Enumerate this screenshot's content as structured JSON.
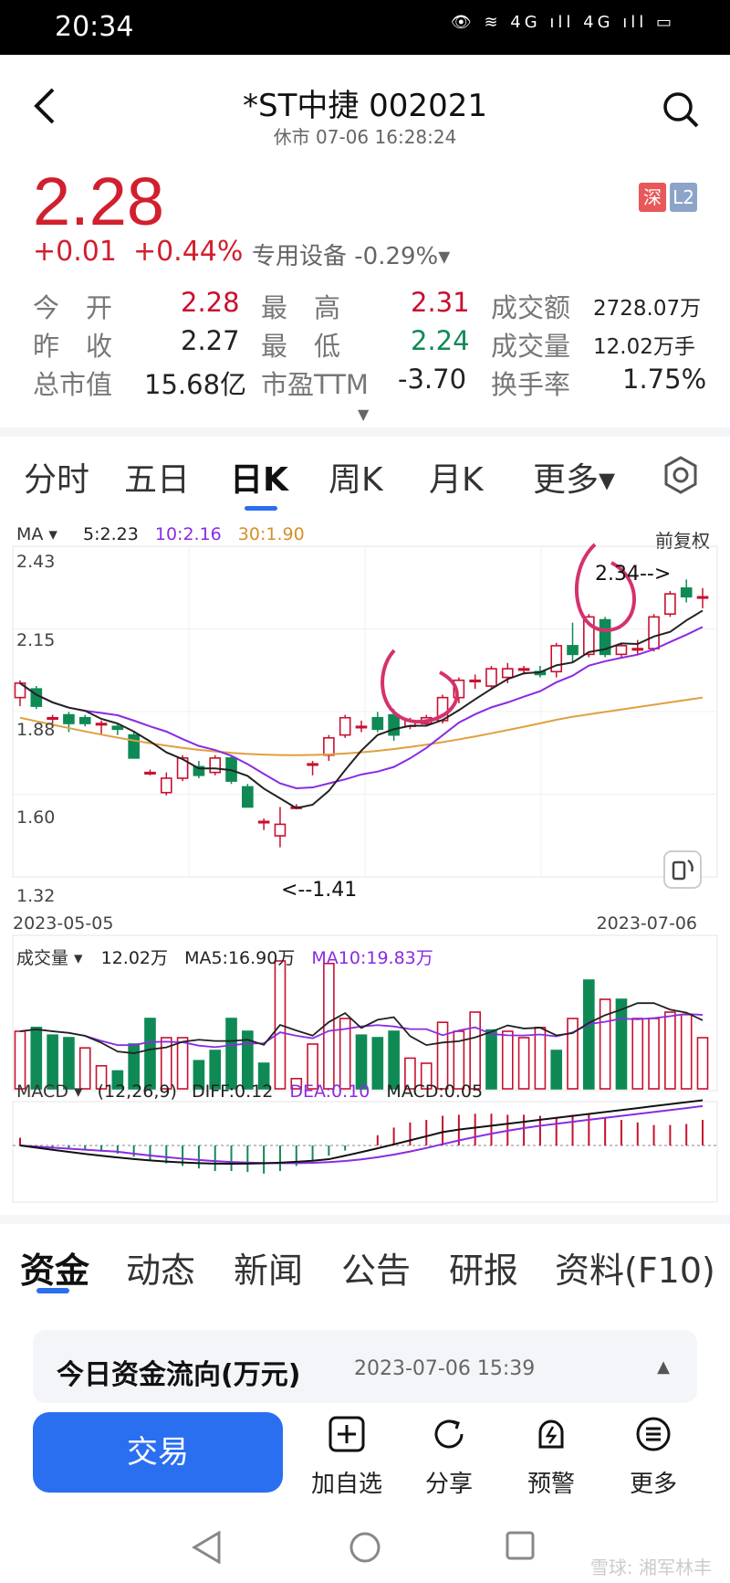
{
  "status_bar": {
    "time": "20:34",
    "icons": "👁 ≋ 4G ıll 4G ıll ▭"
  },
  "header": {
    "title": "*ST中捷 002021",
    "subtitle": "休市 07-06 16:28:24"
  },
  "quote": {
    "price": "2.28",
    "change": "+0.01",
    "change_pct": "+0.44%",
    "sector": "专用设备 -0.29%▾",
    "badge_exchange": "深",
    "badge_level": "L2",
    "rows": [
      {
        "l1": "今　开",
        "v1": "2.28",
        "l2": "最　高",
        "v2": "2.31",
        "l3": "成交额",
        "v3": "2728.07万"
      },
      {
        "l1": "昨　收",
        "v1": "2.27",
        "l2": "最　低",
        "v2": "2.24",
        "l3": "成交量",
        "v3": "12.02万手"
      },
      {
        "l1": "总市值",
        "v1": "15.68亿",
        "l2": "市盈TTM",
        "v2": "-3.70",
        "l3": "换手率",
        "v3": "1.75%"
      }
    ],
    "expand_icon": "▼"
  },
  "chart_tabs": [
    "分时",
    "五日",
    "日K",
    "周K",
    "月K",
    "更多▾"
  ],
  "chart_tab_active": 2,
  "chart_legend": {
    "ma_label": "MA ▾",
    "ma5": "5:2.23",
    "ma10": "10:2.16",
    "ma30": "30:1.90",
    "adjust": "前复权",
    "y_top": "2.43",
    "y_2": "2.15",
    "y_3": "1.88",
    "y_4": "1.60",
    "y_bottom": "1.32",
    "x_start": "2023-05-05",
    "x_end": "2023-07-06",
    "max_annot": "2.34-->",
    "min_annot": "<--1.41",
    "vol_label": "成交量 ▾",
    "vol_val": "12.02万",
    "vol_ma5": "MA5:16.90万",
    "vol_ma10": "MA10:19.83万",
    "macd_label": "MACD ▾",
    "macd_params": "(12,26,9)",
    "diff": "DIFF:0.12",
    "dea": "DEA:0.10",
    "macd": "MACD:0.05"
  },
  "chart_data": {
    "type": "candlestick",
    "x_range": [
      "2023-05-05",
      "2023-07-06"
    ],
    "ylim": [
      1.32,
      2.43
    ],
    "min_low": 1.41,
    "max_high": 2.34,
    "candles": [
      {
        "o": 1.93,
        "c": 1.98,
        "h": 1.99,
        "l": 1.9
      },
      {
        "o": 1.96,
        "c": 1.9,
        "h": 1.97,
        "l": 1.89
      },
      {
        "o": 1.86,
        "c": 1.86,
        "h": 1.87,
        "l": 1.84
      },
      {
        "o": 1.87,
        "c": 1.84,
        "h": 1.88,
        "l": 1.81
      },
      {
        "o": 1.86,
        "c": 1.84,
        "h": 1.87,
        "l": 1.83
      },
      {
        "o": 1.84,
        "c": 1.84,
        "h": 1.85,
        "l": 1.8
      },
      {
        "o": 1.83,
        "c": 1.82,
        "h": 1.84,
        "l": 1.8
      },
      {
        "o": 1.8,
        "c": 1.72,
        "h": 1.81,
        "l": 1.72
      },
      {
        "o": 1.67,
        "c": 1.67,
        "h": 1.68,
        "l": 1.66
      },
      {
        "o": 1.6,
        "c": 1.65,
        "h": 1.67,
        "l": 1.59
      },
      {
        "o": 1.65,
        "c": 1.72,
        "h": 1.73,
        "l": 1.64
      },
      {
        "o": 1.69,
        "c": 1.66,
        "h": 1.71,
        "l": 1.65
      },
      {
        "o": 1.67,
        "c": 1.72,
        "h": 1.73,
        "l": 1.66
      },
      {
        "o": 1.72,
        "c": 1.64,
        "h": 1.73,
        "l": 1.63
      },
      {
        "o": 1.62,
        "c": 1.55,
        "h": 1.63,
        "l": 1.55
      },
      {
        "o": 1.5,
        "c": 1.5,
        "h": 1.51,
        "l": 1.47
      },
      {
        "o": 1.45,
        "c": 1.49,
        "h": 1.55,
        "l": 1.41
      },
      {
        "o": 1.55,
        "c": 1.55,
        "h": 1.56,
        "l": 1.55
      },
      {
        "o": 1.7,
        "c": 1.7,
        "h": 1.71,
        "l": 1.66
      },
      {
        "o": 1.73,
        "c": 1.79,
        "h": 1.8,
        "l": 1.71
      },
      {
        "o": 1.8,
        "c": 1.86,
        "h": 1.87,
        "l": 1.79
      },
      {
        "o": 1.83,
        "c": 1.83,
        "h": 1.85,
        "l": 1.81
      },
      {
        "o": 1.86,
        "c": 1.82,
        "h": 1.88,
        "l": 1.81
      },
      {
        "o": 1.87,
        "c": 1.8,
        "h": 1.89,
        "l": 1.78
      },
      {
        "o": 1.83,
        "c": 1.85,
        "h": 1.86,
        "l": 1.82
      },
      {
        "o": 1.84,
        "c": 1.86,
        "h": 1.87,
        "l": 1.83
      },
      {
        "o": 1.85,
        "c": 1.93,
        "h": 1.94,
        "l": 1.84
      },
      {
        "o": 1.93,
        "c": 1.99,
        "h": 2.0,
        "l": 1.91
      },
      {
        "o": 1.99,
        "c": 1.99,
        "h": 2.01,
        "l": 1.96
      },
      {
        "o": 1.97,
        "c": 2.03,
        "h": 2.04,
        "l": 1.96
      },
      {
        "o": 2.0,
        "c": 2.03,
        "h": 2.05,
        "l": 1.98
      },
      {
        "o": 2.03,
        "c": 2.03,
        "h": 2.04,
        "l": 2.01
      },
      {
        "o": 2.02,
        "c": 2.01,
        "h": 2.04,
        "l": 2.0
      },
      {
        "o": 2.02,
        "c": 2.11,
        "h": 2.12,
        "l": 2.0
      },
      {
        "o": 2.11,
        "c": 2.08,
        "h": 2.19,
        "l": 2.05
      },
      {
        "o": 2.08,
        "c": 2.21,
        "h": 2.22,
        "l": 2.07
      },
      {
        "o": 2.2,
        "c": 2.08,
        "h": 2.21,
        "l": 2.07
      },
      {
        "o": 2.08,
        "c": 2.11,
        "h": 2.12,
        "l": 2.07
      },
      {
        "o": 2.1,
        "c": 2.1,
        "h": 2.13,
        "l": 2.08
      },
      {
        "o": 2.1,
        "c": 2.21,
        "h": 2.22,
        "l": 2.09
      },
      {
        "o": 2.22,
        "c": 2.29,
        "h": 2.3,
        "l": 2.21
      },
      {
        "o": 2.31,
        "c": 2.28,
        "h": 2.34,
        "l": 2.26
      },
      {
        "o": 2.28,
        "c": 2.28,
        "h": 2.31,
        "l": 2.24
      }
    ],
    "volumes": [
      {
        "v": 0.45,
        "up": true
      },
      {
        "v": 0.48,
        "up": false
      },
      {
        "v": 0.42,
        "up": false
      },
      {
        "v": 0.4,
        "up": false
      },
      {
        "v": 0.32,
        "up": true
      },
      {
        "v": 0.18,
        "up": true
      },
      {
        "v": 0.14,
        "up": false
      },
      {
        "v": 0.35,
        "up": false
      },
      {
        "v": 0.55,
        "up": false
      },
      {
        "v": 0.4,
        "up": true
      },
      {
        "v": 0.4,
        "up": true
      },
      {
        "v": 0.22,
        "up": false
      },
      {
        "v": 0.3,
        "up": false
      },
      {
        "v": 0.55,
        "up": false
      },
      {
        "v": 0.45,
        "up": false
      },
      {
        "v": 0.2,
        "up": false
      },
      {
        "v": 1.0,
        "up": true
      },
      {
        "v": 0.08,
        "up": true
      },
      {
        "v": 0.35,
        "up": true
      },
      {
        "v": 0.98,
        "up": true
      },
      {
        "v": 0.55,
        "up": true
      },
      {
        "v": 0.42,
        "up": false
      },
      {
        "v": 0.4,
        "up": false
      },
      {
        "v": 0.45,
        "up": false
      },
      {
        "v": 0.24,
        "up": true
      },
      {
        "v": 0.2,
        "up": true
      },
      {
        "v": 0.52,
        "up": true
      },
      {
        "v": 0.45,
        "up": true
      },
      {
        "v": 0.6,
        "up": true
      },
      {
        "v": 0.46,
        "up": false
      },
      {
        "v": 0.45,
        "up": true
      },
      {
        "v": 0.4,
        "up": true
      },
      {
        "v": 0.48,
        "up": true
      },
      {
        "v": 0.3,
        "up": false
      },
      {
        "v": 0.55,
        "up": true
      },
      {
        "v": 0.85,
        "up": false
      },
      {
        "v": 0.7,
        "up": true
      },
      {
        "v": 0.7,
        "up": false
      },
      {
        "v": 0.55,
        "up": true
      },
      {
        "v": 0.55,
        "up": true
      },
      {
        "v": 0.6,
        "up": true
      },
      {
        "v": 0.58,
        "up": true
      },
      {
        "v": 0.4,
        "up": true
      }
    ],
    "macd_hist": [
      0.015,
      -0.005,
      -0.006,
      -0.008,
      -0.01,
      -0.012,
      -0.016,
      -0.022,
      -0.03,
      -0.035,
      -0.04,
      -0.045,
      -0.05,
      -0.05,
      -0.052,
      -0.055,
      -0.05,
      -0.04,
      -0.03,
      -0.02,
      -0.01,
      0.0,
      0.02,
      0.035,
      0.045,
      0.05,
      0.058,
      0.06,
      0.062,
      0.062,
      0.06,
      0.06,
      0.058,
      0.055,
      0.06,
      0.062,
      0.055,
      0.05,
      0.045,
      0.04,
      0.04,
      0.042,
      0.05
    ],
    "series_ma5_color": "#222222",
    "series_ma10_color": "#8a2be2",
    "series_ma30_color": "#e0a040"
  },
  "bottom_tabs": [
    "资金",
    "动态",
    "新闻",
    "公告",
    "研报",
    "资料(F10)"
  ],
  "flow_card": {
    "title": "今日资金流向(万元)",
    "date": "2023-07-06 15:39",
    "caret": "▲"
  },
  "actions": {
    "trade": "交易",
    "add": "加自选",
    "share": "分享",
    "alert": "预警",
    "more": "更多"
  },
  "watermark": "雪球: 湘军林丰",
  "colors": {
    "up": "#c8102e",
    "down": "#0f8a55",
    "accent": "#2a6ff0"
  }
}
